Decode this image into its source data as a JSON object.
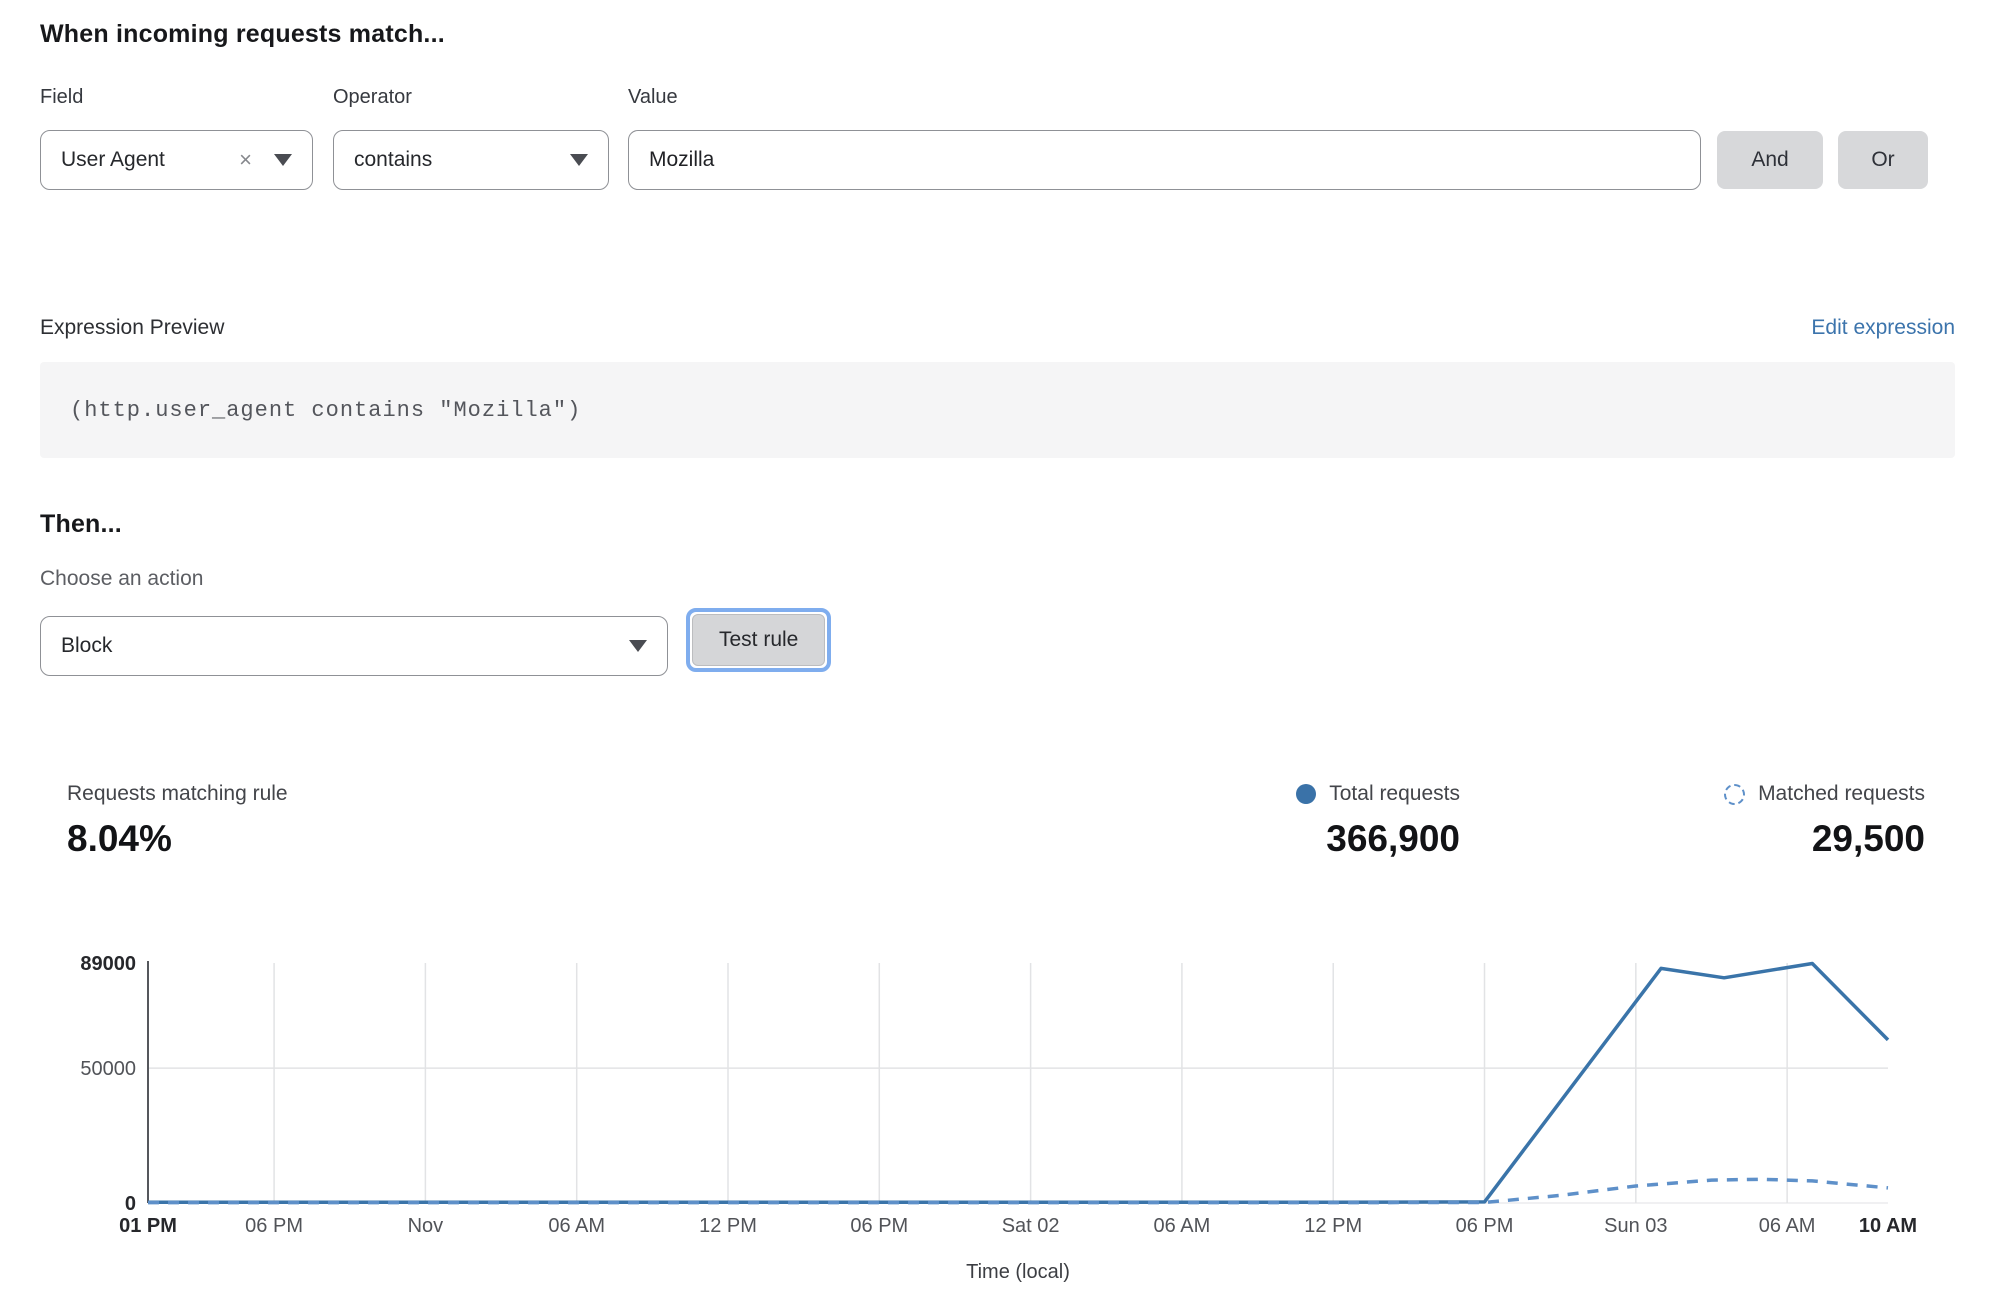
{
  "rule_builder": {
    "heading": "When incoming requests match...",
    "field": {
      "label": "Field",
      "value": "User Agent"
    },
    "operator": {
      "label": "Operator",
      "value": "contains"
    },
    "value": {
      "label": "Value",
      "value": "Mozilla"
    },
    "and_label": "And",
    "or_label": "Or"
  },
  "expression_preview": {
    "label": "Expression Preview",
    "edit_link": "Edit expression",
    "code": "(http.user_agent contains \"Mozilla\")"
  },
  "action": {
    "heading": "Then...",
    "label": "Choose an action",
    "selected": "Block",
    "test_button": "Test rule"
  },
  "stats": {
    "matching": {
      "label": "Requests matching rule",
      "value": "8.04%"
    },
    "total": {
      "label": "Total requests",
      "value": "366,900"
    },
    "matched": {
      "label": "Matched requests",
      "value": "29,500"
    }
  },
  "chart_data": {
    "type": "line",
    "xlabel": "Time (local)",
    "ylim": [
      0,
      89000
    ],
    "xlim_hours": [
      0,
      69
    ],
    "grid": true,
    "legend_position": "top-right",
    "colors": {
      "total": "#3a74a9",
      "matched": "#5e90c9",
      "gridline": "#e2e3e5",
      "axis": "#55575c",
      "tick": "#515358",
      "tick_bold": "#26272b"
    },
    "yticks": [
      {
        "value": 89000,
        "label": "89000",
        "bold": true
      },
      {
        "value": 50000,
        "label": "50000",
        "bold": false
      },
      {
        "value": 0,
        "label": "0",
        "bold": true
      }
    ],
    "xticks": [
      {
        "label": "01 PM",
        "hour": 0,
        "bold": true,
        "grid": false
      },
      {
        "label": "06 PM",
        "hour": 5,
        "bold": false,
        "grid": true
      },
      {
        "label": "Nov",
        "hour": 11,
        "bold": false,
        "grid": true
      },
      {
        "label": "06 AM",
        "hour": 17,
        "bold": false,
        "grid": true
      },
      {
        "label": "12 PM",
        "hour": 23,
        "bold": false,
        "grid": true
      },
      {
        "label": "06 PM",
        "hour": 29,
        "bold": false,
        "grid": true
      },
      {
        "label": "Sat 02",
        "hour": 35,
        "bold": false,
        "grid": true
      },
      {
        "label": "06 AM",
        "hour": 41,
        "bold": false,
        "grid": true
      },
      {
        "label": "12 PM",
        "hour": 47,
        "bold": false,
        "grid": true
      },
      {
        "label": "06 PM",
        "hour": 53,
        "bold": false,
        "grid": true
      },
      {
        "label": "Sun 03",
        "hour": 59,
        "bold": false,
        "grid": true
      },
      {
        "label": "06 AM",
        "hour": 65,
        "bold": false,
        "grid": true
      },
      {
        "label": "10 AM",
        "hour": 69,
        "bold": true,
        "grid": false
      }
    ],
    "series": [
      {
        "name": "Total requests",
        "style": "solid",
        "color": "#3a74a9",
        "points": [
          [
            0,
            300
          ],
          [
            5,
            300
          ],
          [
            11,
            300
          ],
          [
            17,
            300
          ],
          [
            23,
            300
          ],
          [
            29,
            300
          ],
          [
            35,
            300
          ],
          [
            41,
            300
          ],
          [
            47,
            300
          ],
          [
            53,
            400
          ],
          [
            60,
            87000
          ],
          [
            62.5,
            83500
          ],
          [
            66,
            88800
          ],
          [
            69,
            60500
          ]
        ]
      },
      {
        "name": "Matched requests",
        "style": "dashed",
        "color": "#5e90c9",
        "points": [
          [
            0,
            150
          ],
          [
            5,
            150
          ],
          [
            11,
            150
          ],
          [
            17,
            150
          ],
          [
            23,
            150
          ],
          [
            29,
            150
          ],
          [
            35,
            150
          ],
          [
            41,
            150
          ],
          [
            47,
            150
          ],
          [
            53,
            200
          ],
          [
            56,
            2800
          ],
          [
            59,
            6300
          ],
          [
            62,
            8500
          ],
          [
            64,
            8800
          ],
          [
            66,
            8200
          ],
          [
            69,
            5600
          ]
        ]
      }
    ]
  }
}
